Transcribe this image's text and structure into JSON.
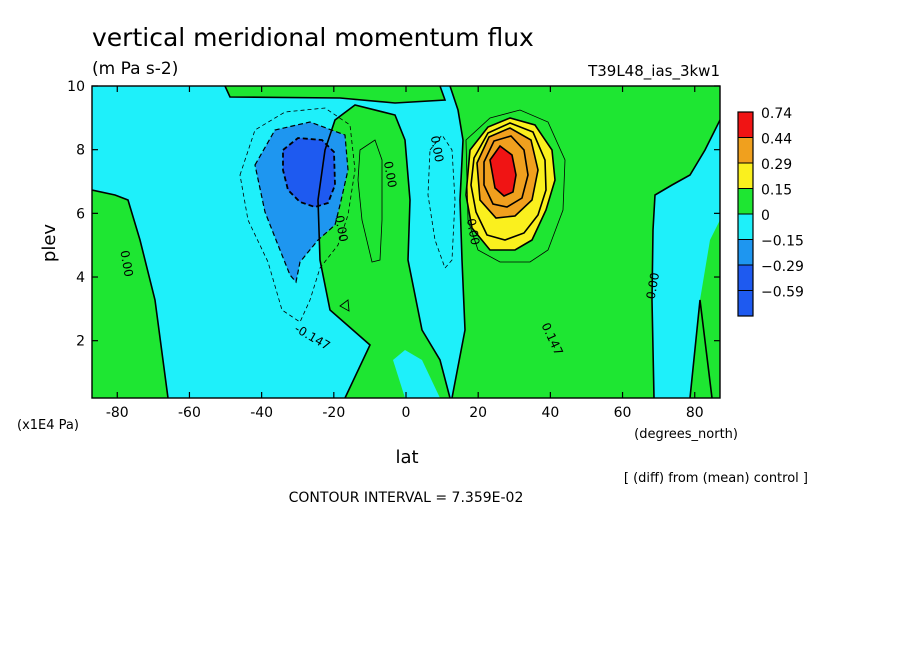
{
  "chart_data": {
    "type": "heatmap",
    "title": "vertical meridional momentum flux",
    "subtitle": "(m Pa s-2)",
    "run_label": "T39L48_ias_3kw1",
    "xlabel": "lat",
    "xunits": "(degrees_north)",
    "ylabel": "plev",
    "yunits": "(x1E4 Pa)",
    "xlim": [
      -87,
      87
    ],
    "ylim": [
      10,
      0.2
    ],
    "x_ticks": [
      -80,
      -60,
      -40,
      -20,
      0,
      20,
      40,
      60,
      80
    ],
    "y_ticks": [
      2,
      4,
      6,
      8,
      10
    ],
    "contour_interval_text": "CONTOUR INTERVAL = 7.359E-02",
    "note": "[ (diff) from (mean) control ]",
    "levels": [
      {
        "label": "0.74",
        "color": "#f01414"
      },
      {
        "label": "0.44",
        "color": "#f0a01e"
      },
      {
        "label": "0.29",
        "color": "#faf01e"
      },
      {
        "label": "0.15",
        "color": "#1ee632"
      },
      {
        "label": "0",
        "color": "#1ef0fa"
      },
      {
        "label": "−0.15",
        "color": "#1e96f0"
      },
      {
        "label": "−0.29",
        "color": "#1e5af0"
      },
      {
        "label": "−0.59",
        "color": "#1e5af0"
      }
    ],
    "colors": {
      "red": "#f01414",
      "orange": "#f0a01e",
      "yellow": "#faf01e",
      "green": "#1ee632",
      "cyan": "#1ef0fa",
      "midblue": "#1e96f0",
      "blue": "#1e5af0"
    },
    "contour_labels": [
      {
        "text": "-0.147",
        "x": -26.5,
        "y": 2.0,
        "angle": 30
      },
      {
        "text": "0.147",
        "x": 39.5,
        "y": 2.0,
        "angle": 65
      },
      {
        "text": "0.00",
        "x": -78.5,
        "y": 4.4,
        "angle": 80
      },
      {
        "text": "0.00",
        "x": -19.0,
        "y": 5.5,
        "angle": 80
      },
      {
        "text": "0.00",
        "x": -5.5,
        "y": 7.2,
        "angle": 80
      },
      {
        "text": "0.00",
        "x": 7.5,
        "y": 8.0,
        "angle": 80
      },
      {
        "text": "0.00",
        "x": 17.5,
        "y": 5.4,
        "angle": 80
      },
      {
        "text": "0.00",
        "x": 69.5,
        "y": 3.7,
        "angle": -80
      }
    ]
  }
}
